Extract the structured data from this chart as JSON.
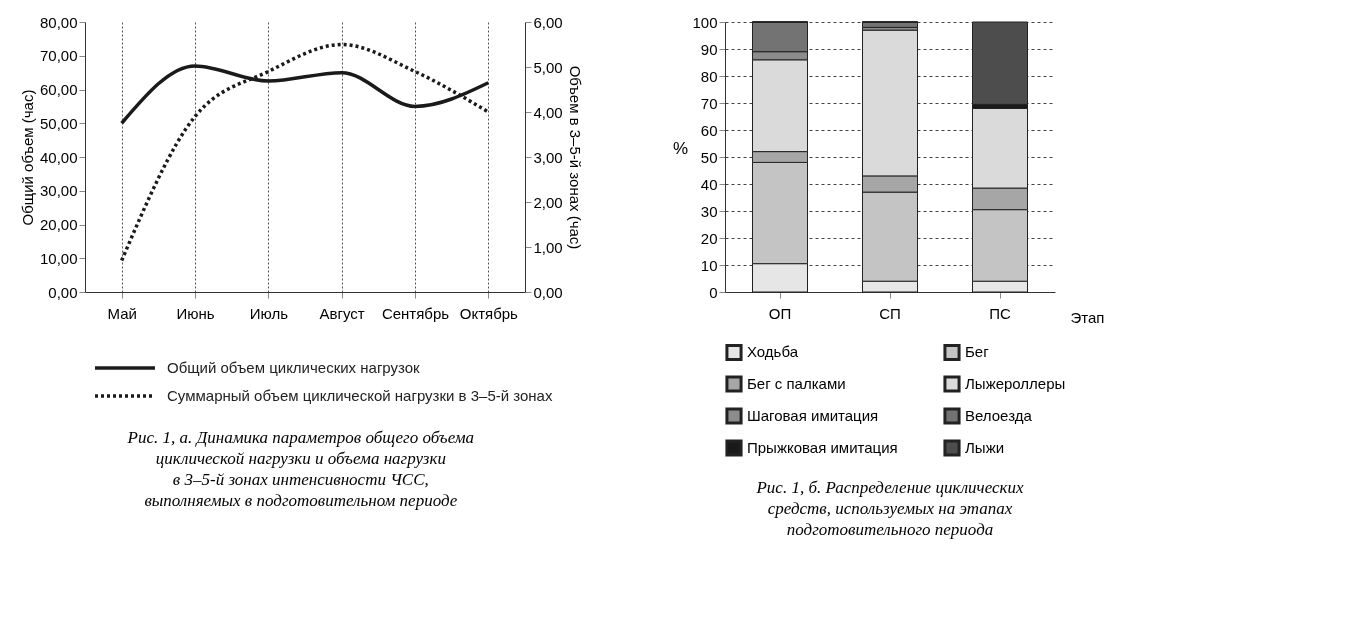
{
  "chart_data": [
    {
      "type": "line",
      "title": "Рис. 1, а. Динамика параметров общего объема\nциклической нагрузки и объема нагрузки\nв 3–5-й зонах интенсивности ЧСС,\nвыполняемых в подготовительном периоде",
      "ylabel": "Общий объем (час)",
      "y2label": "Объем в 3–5-й зонах (час)",
      "categories": [
        "Май",
        "Июнь",
        "Июль",
        "Август",
        "Сентябрь",
        "Октябрь"
      ],
      "ylim": [
        0,
        80
      ],
      "yticks": [
        {
          "value": 0,
          "label": "0,00"
        },
        {
          "value": 10,
          "label": "10,00"
        },
        {
          "value": 20,
          "label": "20,00"
        },
        {
          "value": 30,
          "label": "30,00"
        },
        {
          "value": 40,
          "label": "40,00"
        },
        {
          "value": 50,
          "label": "50,00"
        },
        {
          "value": 60,
          "label": "60,00"
        },
        {
          "value": 70,
          "label": "70,00"
        },
        {
          "value": 80,
          "label": "80,00"
        }
      ],
      "y2lim": [
        0,
        6
      ],
      "y2ticks": [
        {
          "value": 0,
          "label": "0,00"
        },
        {
          "value": 1,
          "label": "1,00"
        },
        {
          "value": 2,
          "label": "2,00"
        },
        {
          "value": 3,
          "label": "3,00"
        },
        {
          "value": 4,
          "label": "4,00"
        },
        {
          "value": 5,
          "label": "5,00"
        },
        {
          "value": 6,
          "label": "6,00"
        }
      ],
      "grid": "x",
      "legend": "bottom left",
      "marker": "none",
      "series": [
        {
          "name": "Общий объем циклических нагрузок",
          "color": "#1a1a1a",
          "line_style": "solid",
          "values": [
            50,
            67,
            62.5,
            65,
            55,
            62
          ]
        },
        {
          "name": "Суммарный объем циклической нагрузки в 3–5-й зонах",
          "color": "#1a1a1a",
          "line_style": "dotted",
          "axis": "y2",
          "values": [
            0.7,
            3.9,
            4.9,
            5.5,
            4.9,
            4.0
          ]
        }
      ]
    },
    {
      "type": "bar",
      "stacked": true,
      "title": "Рис. 1, б. Распределение циклических\nсредств, используемых на этапах\nподготовительного периода",
      "ylabel": "%",
      "xlabel": "Этап",
      "categories": [
        "ОП",
        "СП",
        "ПС"
      ],
      "ylim": [
        0,
        100
      ],
      "yticks": [
        0,
        10,
        20,
        30,
        40,
        50,
        60,
        70,
        80,
        90,
        100
      ],
      "grid": "y",
      "legend": "bottom",
      "series": [
        {
          "name": "Ходьба",
          "color": "#e6e6e6",
          "values": [
            10.5,
            4,
            4
          ]
        },
        {
          "name": "Бег",
          "color": "#c4c4c4",
          "values": [
            37.5,
            33,
            26.5
          ]
        },
        {
          "name": "Бег с палками",
          "color": "#a6a6a6",
          "values": [
            4,
            6,
            8
          ]
        },
        {
          "name": "Лыжероллеры",
          "color": "#dadada",
          "values": [
            34,
            54,
            29.5
          ]
        },
        {
          "name": "Шаговая имитация",
          "color": "#8c8c8c",
          "values": [
            3,
            1,
            0
          ]
        },
        {
          "name": "Велоезда",
          "color": "#737373",
          "values": [
            11,
            2,
            0
          ]
        },
        {
          "name": "Прыжковая имитация",
          "color": "#1a1a1a",
          "values": [
            0,
            0,
            1.5
          ]
        },
        {
          "name": "Лыжи",
          "color": "#4d4d4d",
          "values": [
            0,
            0,
            30.5
          ]
        }
      ]
    }
  ]
}
